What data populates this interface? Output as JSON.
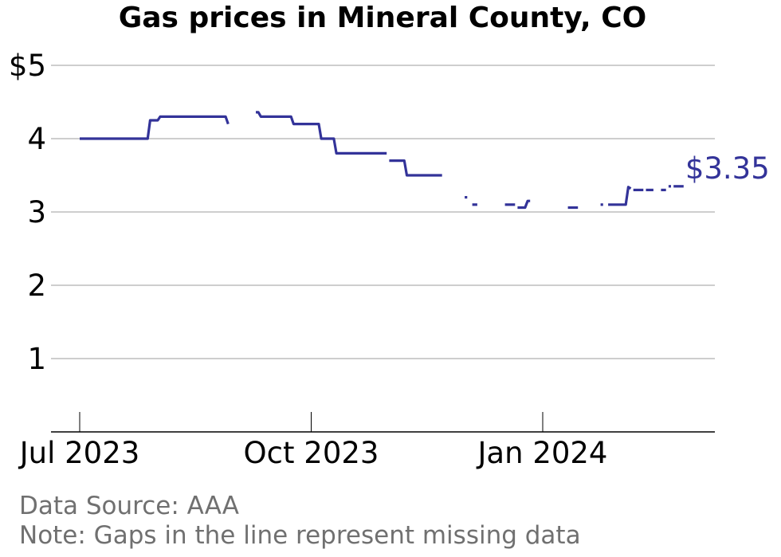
{
  "colors": {
    "line": "#333399",
    "grid": "#b0b0b0",
    "axis": "#000000",
    "footnote": "#707070"
  },
  "footnotes": {
    "source": "Data Source: AAA",
    "note": "Note: Gaps in the line represent missing data"
  },
  "chart_data": {
    "type": "line",
    "title": "Gas prices in Mineral County, CO",
    "xlabel": "",
    "ylabel": "",
    "ylim": [
      0,
      5
    ],
    "xlim": [
      "2023-06-20",
      "2024-03-22"
    ],
    "grid": true,
    "y_ticks": [
      {
        "value": 5,
        "label": "$5"
      },
      {
        "value": 4,
        "label": "4"
      },
      {
        "value": 3,
        "label": "3"
      },
      {
        "value": 2,
        "label": "2"
      },
      {
        "value": 1,
        "label": "1"
      }
    ],
    "x_ticks": [
      {
        "date": "2023-07-01",
        "label": "Jul 2023"
      },
      {
        "date": "2023-10-01",
        "label": "Oct 2023"
      },
      {
        "date": "2024-01-01",
        "label": "Jan 2024"
      }
    ],
    "last_value_label": "$3.35",
    "series": [
      {
        "segments": [
          [
            [
              "2023-07-01",
              4.0
            ],
            [
              "2023-07-28",
              4.0
            ],
            [
              "2023-07-29",
              4.25
            ],
            [
              "2023-08-01",
              4.25
            ],
            [
              "2023-08-02",
              4.3
            ],
            [
              "2023-08-28",
              4.3
            ],
            [
              "2023-08-29",
              4.2
            ]
          ],
          [
            [
              "2023-09-09",
              4.36
            ],
            [
              "2023-09-10",
              4.36
            ],
            [
              "2023-09-11",
              4.3
            ],
            [
              "2023-09-23",
              4.3
            ],
            [
              "2023-09-24",
              4.2
            ],
            [
              "2023-10-04",
              4.2
            ],
            [
              "2023-10-05",
              4.0
            ],
            [
              "2023-10-10",
              4.0
            ],
            [
              "2023-10-11",
              3.8
            ],
            [
              "2023-10-31",
              3.8
            ]
          ],
          [
            [
              "2023-11-01",
              3.7
            ],
            [
              "2023-11-07",
              3.7
            ],
            [
              "2023-11-08",
              3.5
            ],
            [
              "2023-11-22",
              3.5
            ]
          ],
          [
            [
              "2023-12-01",
              3.2
            ],
            [
              "2023-12-02",
              3.2
            ]
          ],
          [
            [
              "2023-12-04",
              3.1
            ],
            [
              "2023-12-06",
              3.1
            ]
          ],
          [
            [
              "2023-12-17",
              3.1
            ],
            [
              "2023-12-21",
              3.1
            ]
          ],
          [
            [
              "2023-12-22",
              3.06
            ],
            [
              "2023-12-25",
              3.06
            ],
            [
              "2023-12-26",
              3.15
            ],
            [
              "2023-12-27",
              3.15
            ]
          ],
          [
            [
              "2024-01-11",
              3.06
            ],
            [
              "2024-01-15",
              3.06
            ]
          ],
          [
            [
              "2024-01-24",
              3.1
            ],
            [
              "2024-01-25",
              3.1
            ]
          ],
          [
            [
              "2024-01-27",
              3.1
            ],
            [
              "2024-02-03",
              3.1
            ],
            [
              "2024-02-04",
              3.34
            ],
            [
              "2024-02-05",
              3.32
            ]
          ],
          [
            [
              "2024-02-06",
              3.3
            ],
            [
              "2024-02-10",
              3.3
            ]
          ],
          [
            [
              "2024-02-11",
              3.3
            ],
            [
              "2024-02-14",
              3.3
            ]
          ],
          [
            [
              "2024-02-17",
              3.3
            ],
            [
              "2024-02-19",
              3.3
            ]
          ],
          [
            [
              "2024-02-20",
              3.35
            ],
            [
              "2024-02-21",
              3.35
            ]
          ],
          [
            [
              "2024-02-22",
              3.35
            ],
            [
              "2024-02-26",
              3.35
            ]
          ]
        ]
      }
    ]
  }
}
